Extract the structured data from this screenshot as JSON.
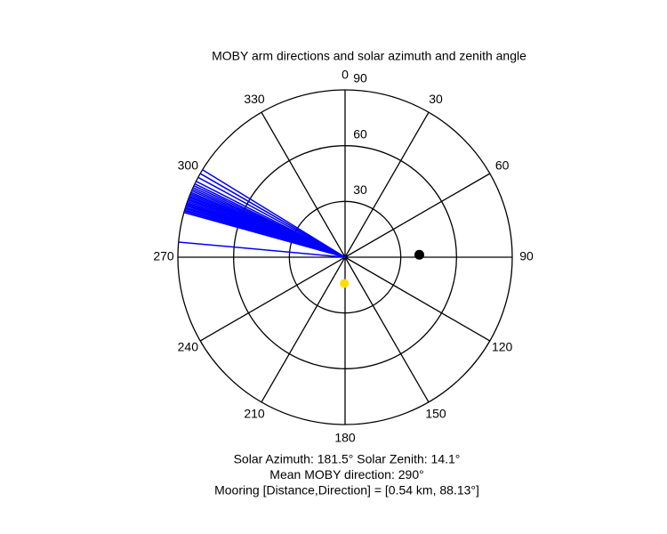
{
  "chart_data": {
    "type": "polar",
    "title": "MOBY arm directions and solar azimuth and zenith angle",
    "theta_ticks": [
      0,
      30,
      60,
      90,
      120,
      150,
      180,
      210,
      240,
      270,
      300,
      330
    ],
    "rlim": [
      0,
      90
    ],
    "rticks": [
      30,
      60,
      90
    ],
    "arm_directions": {
      "color": "#0000ff",
      "values": [
        275.2,
        285.5,
        286.0,
        286.4,
        286.9,
        287.3,
        287.8,
        288.2,
        288.6,
        289.0,
        289.5,
        290.0,
        290.4,
        290.9,
        291.3,
        291.8,
        292.3,
        292.8,
        293.4,
        294.0,
        294.6,
        295.3,
        296.0,
        297.0,
        298.5,
        300.0,
        301.5
      ]
    },
    "sun": {
      "color": "#ffdd00",
      "azimuth": 181.5,
      "zenith": 14.1
    },
    "mooring": {
      "color": "#000000",
      "direction": 88.13,
      "radius": 40
    },
    "annotations": [
      "Solar Azimuth: 181.5°   Solar Zenith: 14.1°",
      "Mean MOBY direction: 290°",
      "Mooring [Distance,Direction] = [0.54 km, 88.13°]"
    ]
  }
}
